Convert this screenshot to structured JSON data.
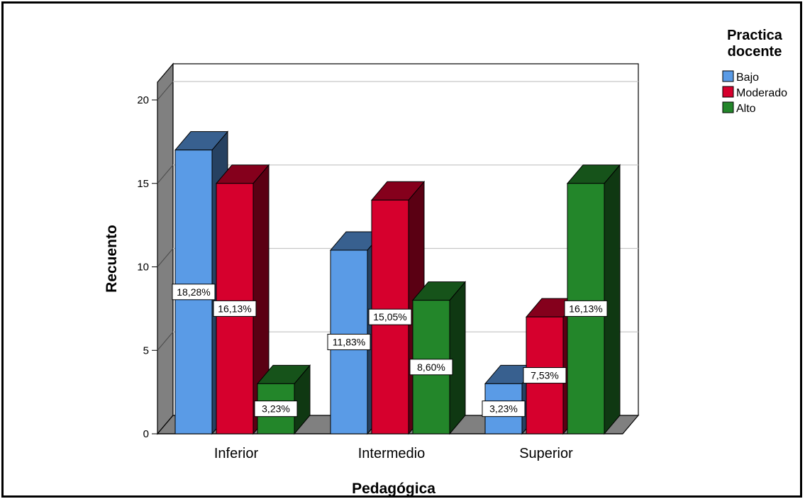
{
  "chart_data": {
    "type": "bar",
    "style": "3d-clustered",
    "categories": [
      "Inferior",
      "Intermedio",
      "Superior"
    ],
    "xlabel": "Pedagógica",
    "ylabel": "Recuento",
    "ylim": [
      0,
      20
    ],
    "yticks": [
      "0",
      "5",
      "10",
      "15",
      "20"
    ],
    "grid": true,
    "legend": {
      "title_line1": "Practica",
      "title_line2": "docente",
      "position": "top-right"
    },
    "series": [
      {
        "name": "Bajo",
        "color": "#5a9be6",
        "values": [
          17,
          11,
          3
        ],
        "labels": [
          "18,28%",
          "11,83%",
          "3,23%"
        ]
      },
      {
        "name": "Moderado",
        "color": "#d6002d",
        "values": [
          15,
          14,
          7
        ],
        "labels": [
          "16,13%",
          "15,05%",
          "7,53%"
        ]
      },
      {
        "name": "Alto",
        "color": "#23862a",
        "values": [
          3,
          8,
          15
        ],
        "labels": [
          "3,23%",
          "8,60%",
          "16,13%"
        ]
      }
    ]
  }
}
